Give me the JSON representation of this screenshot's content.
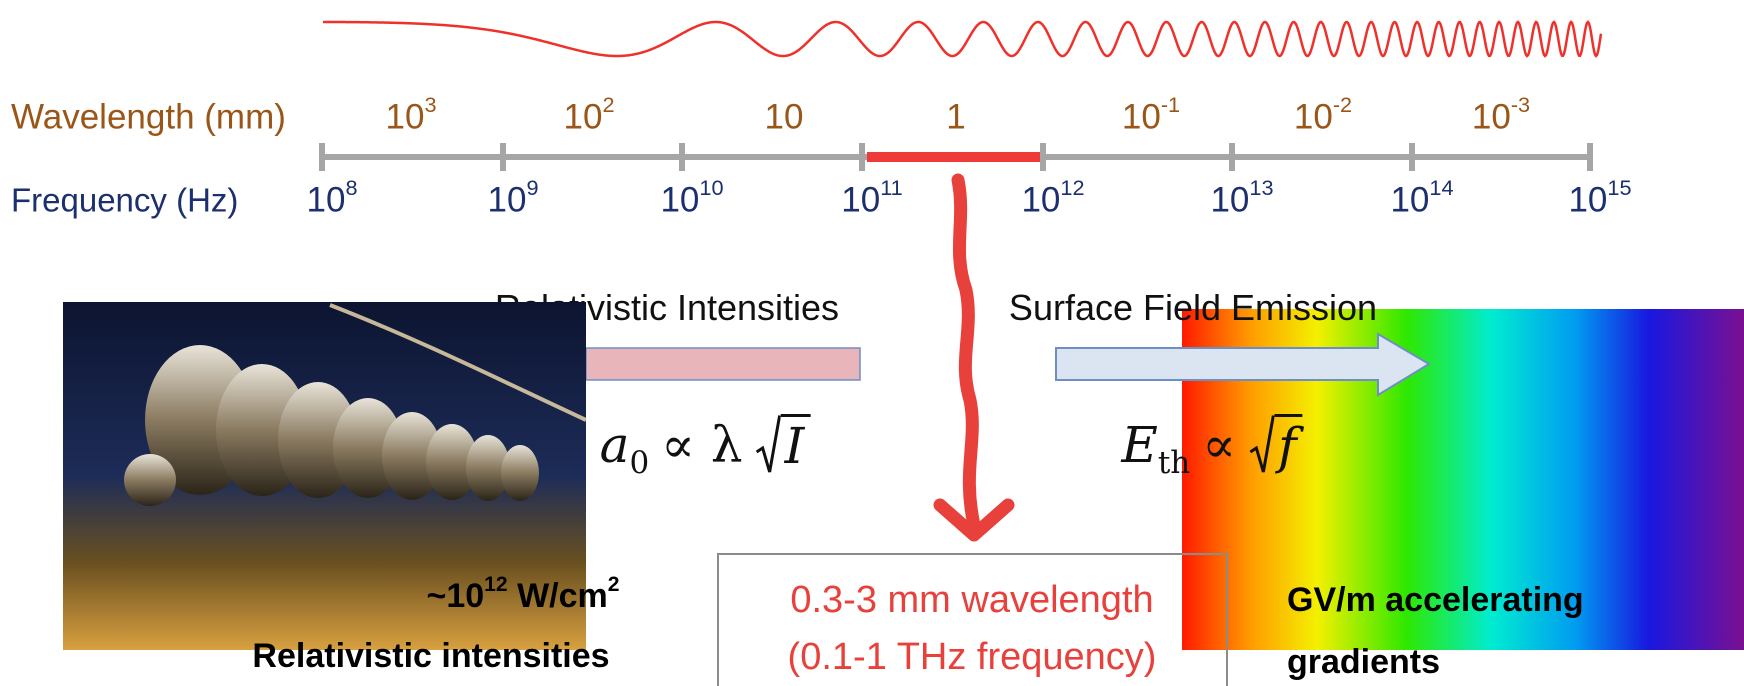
{
  "axis": {
    "wavelength_label": "Wavelength (mm)",
    "frequency_label": "Frequency (Hz)",
    "wavelengths": [
      {
        "base": "10",
        "exp": "3"
      },
      {
        "base": "10",
        "exp": "2"
      },
      {
        "base": "10"
      },
      {
        "base": "1"
      },
      {
        "base": "10",
        "exp": "-1"
      },
      {
        "base": "10",
        "exp": "-2"
      },
      {
        "base": "10",
        "exp": "-3"
      }
    ],
    "frequencies": [
      {
        "base": "10",
        "exp": "8"
      },
      {
        "base": "10",
        "exp": "9"
      },
      {
        "base": "10",
        "exp": "10"
      },
      {
        "base": "10",
        "exp": "11"
      },
      {
        "base": "10",
        "exp": "12"
      },
      {
        "base": "10",
        "exp": "13"
      },
      {
        "base": "10",
        "exp": "14"
      },
      {
        "base": "10",
        "exp": "15"
      }
    ]
  },
  "left": {
    "title": "Relativistic Intensities",
    "formula": {
      "symbol": "a",
      "sub": "0",
      "rel": "∝ λ",
      "radicand": "I"
    },
    "intensity": {
      "base": "~10",
      "exp": "12",
      "unit": "W/cm",
      "unit_exp": "2"
    },
    "caption": "Relativistic intensities"
  },
  "right": {
    "title": "Surface Field Emission",
    "formula": {
      "symbol": "E",
      "sub": "th",
      "rel": "∝",
      "radicand": "f"
    },
    "caption_lines": [
      "GV/m accelerating",
      "gradients"
    ]
  },
  "highlight": {
    "lines": [
      "0.3-3 mm wavelength",
      "(0.1-1 THz frequency)"
    ]
  }
}
